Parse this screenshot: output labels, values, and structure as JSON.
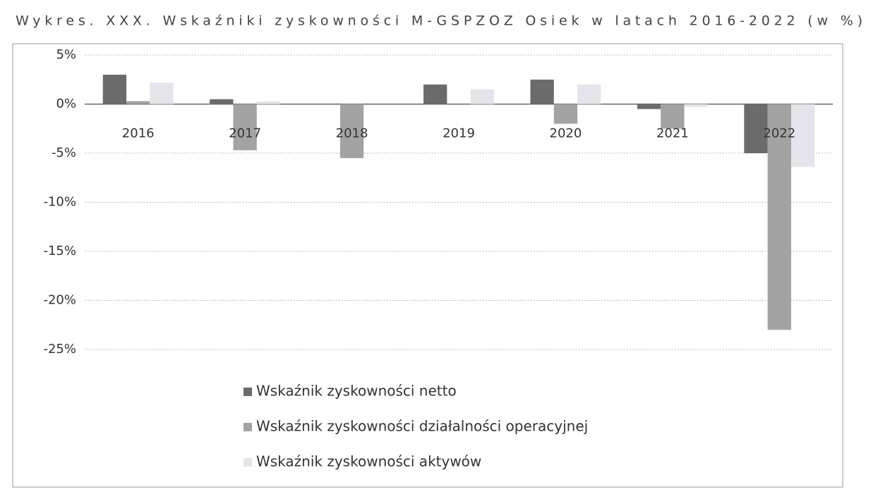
{
  "chart_data": {
    "type": "bar",
    "title": "Wykres. XXX. Wskaźniki zyskowności M-GSPZOZ Osiek w latach 2016-2022 (w %)",
    "categories": [
      "2016",
      "2017",
      "2018",
      "2019",
      "2020",
      "2021",
      "2022"
    ],
    "series": [
      {
        "name": "Wskaźnik zyskowności netto",
        "color": "#6b6b6b",
        "values": [
          3.0,
          0.5,
          0,
          2.0,
          2.5,
          -0.5,
          -5.0
        ]
      },
      {
        "name": "Wskaźnik zyskowności działalności operacyjnej",
        "color": "#a3a3a3",
        "values": [
          0.3,
          -4.7,
          -5.5,
          0,
          -2.0,
          -2.5,
          -23.0
        ]
      },
      {
        "name": "Wskaźnik zyskowności aktywów",
        "color": "#e6e4ea",
        "values": [
          2.2,
          0.3,
          0,
          1.5,
          2.0,
          -0.3,
          -6.4
        ]
      }
    ],
    "ylim": [
      -25,
      5
    ],
    "yticks": [
      {
        "value": -25,
        "label": "-25%"
      },
      {
        "value": -20,
        "label": "-20%"
      },
      {
        "value": -15,
        "label": "-15%"
      },
      {
        "value": -10,
        "label": "-10%"
      },
      {
        "value": -5,
        "label": "-5%"
      },
      {
        "value": 0,
        "label": "0%"
      },
      {
        "value": 5,
        "label": "5%"
      }
    ],
    "grid": true,
    "legend": "bottom"
  }
}
